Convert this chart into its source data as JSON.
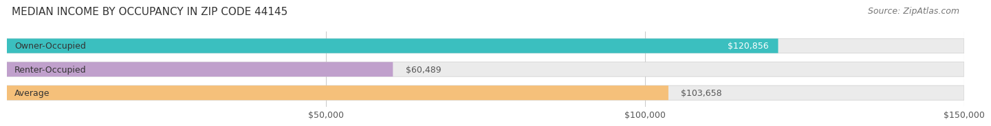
{
  "title": "MEDIAN INCOME BY OCCUPANCY IN ZIP CODE 44145",
  "source": "Source: ZipAtlas.com",
  "categories": [
    "Owner-Occupied",
    "Renter-Occupied",
    "Average"
  ],
  "values": [
    120856,
    60489,
    103658
  ],
  "bar_colors": [
    "#3bbfbf",
    "#c0a0cc",
    "#f5c07a"
  ],
  "bar_bg_color": "#ebebeb",
  "value_labels": [
    "$120,856",
    "$60,489",
    "$103,658"
  ],
  "xlim": [
    0,
    150000
  ],
  "xtick_labels": [
    "$50,000",
    "$100,000",
    "$150,000"
  ],
  "xtick_values": [
    50000,
    100000,
    150000
  ],
  "title_fontsize": 11,
  "source_fontsize": 9,
  "label_fontsize": 9,
  "value_fontsize": 9,
  "tick_fontsize": 9,
  "background_color": "#ffffff",
  "bar_border_color": "#cccccc"
}
